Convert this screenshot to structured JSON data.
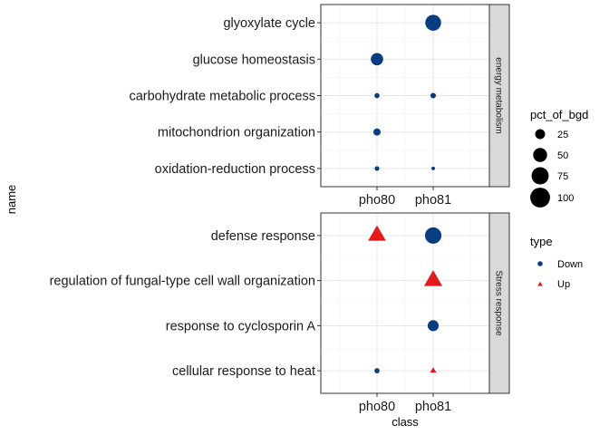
{
  "chart_data": {
    "type": "scatter",
    "subtype": "faceted dot plot",
    "xlabel": "class",
    "ylabel": "name",
    "categories": [
      "pho80",
      "pho81"
    ],
    "facets": [
      {
        "strip": "energy metabolism",
        "terms": [
          "glyoxylate cycle",
          "glucose homeostasis",
          "carbohydrate metabolic process",
          "mitochondrion organization",
          "oxidation-reduction process"
        ],
        "points": [
          {
            "name": "glyoxylate cycle",
            "class": "pho81",
            "type": "Down",
            "pct_of_bgd": 58
          },
          {
            "name": "glucose homeostasis",
            "class": "pho80",
            "type": "Down",
            "pct_of_bgd": 35
          },
          {
            "name": "carbohydrate metabolic process",
            "class": "pho80",
            "type": "Down",
            "pct_of_bgd": 6
          },
          {
            "name": "carbohydrate metabolic process",
            "class": "pho81",
            "type": "Down",
            "pct_of_bgd": 7
          },
          {
            "name": "mitochondrion organization",
            "class": "pho80",
            "type": "Down",
            "pct_of_bgd": 12
          },
          {
            "name": "oxidation-reduction process",
            "class": "pho80",
            "type": "Down",
            "pct_of_bgd": 5
          },
          {
            "name": "oxidation-reduction process",
            "class": "pho81",
            "type": "Down",
            "pct_of_bgd": 2
          }
        ]
      },
      {
        "strip": "Stress response",
        "terms": [
          "defense response",
          "regulation of fungal-type cell wall organization",
          "response to cyclosporin A",
          "cellular response to heat"
        ],
        "points": [
          {
            "name": "defense response",
            "class": "pho80",
            "type": "Up",
            "pct_of_bgd": 95
          },
          {
            "name": "defense response",
            "class": "pho81",
            "type": "Down",
            "pct_of_bgd": 62
          },
          {
            "name": "regulation of fungal-type cell wall organization",
            "class": "pho81",
            "type": "Up",
            "pct_of_bgd": 100
          },
          {
            "name": "response to cyclosporin A",
            "class": "pho81",
            "type": "Down",
            "pct_of_bgd": 28
          },
          {
            "name": "cellular response to heat",
            "class": "pho80",
            "type": "Down",
            "pct_of_bgd": 6
          },
          {
            "name": "cellular response to heat",
            "class": "pho81",
            "type": "Up",
            "pct_of_bgd": 12
          }
        ]
      }
    ],
    "legend": {
      "size": {
        "title": "pct_of_bgd",
        "breaks": [
          25,
          50,
          75,
          100
        ]
      },
      "type": {
        "title": "type",
        "entries": [
          {
            "label": "Down",
            "shape": "circle",
            "color": "#083d82"
          },
          {
            "label": "Up",
            "shape": "triangle",
            "color": "#e31a1c"
          }
        ]
      }
    },
    "grid": true,
    "legend_position": "right"
  }
}
